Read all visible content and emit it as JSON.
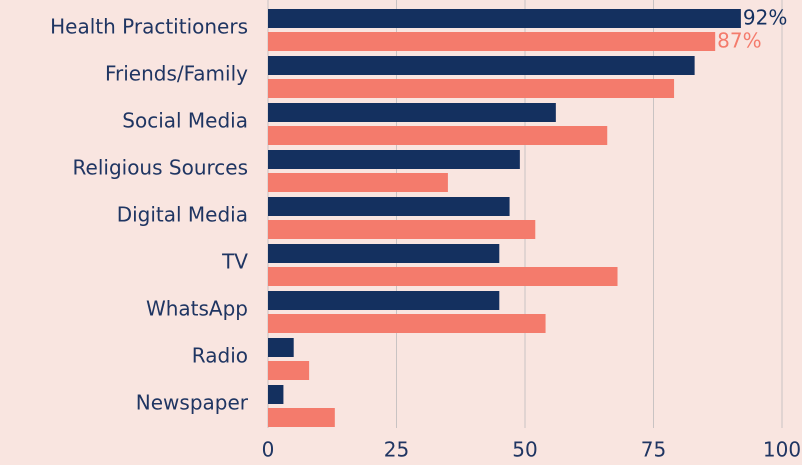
{
  "chart_data": {
    "type": "bar",
    "orientation": "horizontal",
    "categories": [
      "Health Practitioners",
      "Friends/Family",
      "Social Media",
      "Religious Sources",
      "Digital Media",
      "TV",
      "WhatsApp",
      "Radio",
      "Newspaper"
    ],
    "series": [
      {
        "color": "#14305f",
        "values": [
          92,
          83,
          56,
          49,
          47,
          45,
          45,
          5,
          3
        ],
        "value_labels": [
          "92%",
          null,
          null,
          null,
          null,
          null,
          null,
          null,
          null
        ]
      },
      {
        "color": "#f47b6c",
        "values": [
          87,
          79,
          66,
          35,
          52,
          68,
          54,
          8,
          13
        ],
        "value_labels": [
          "87%",
          null,
          null,
          null,
          null,
          null,
          null,
          null,
          null
        ]
      }
    ],
    "xlim": [
      0,
      100
    ],
    "xticks": [
      0,
      25,
      50,
      75,
      100
    ],
    "grid": true
  }
}
